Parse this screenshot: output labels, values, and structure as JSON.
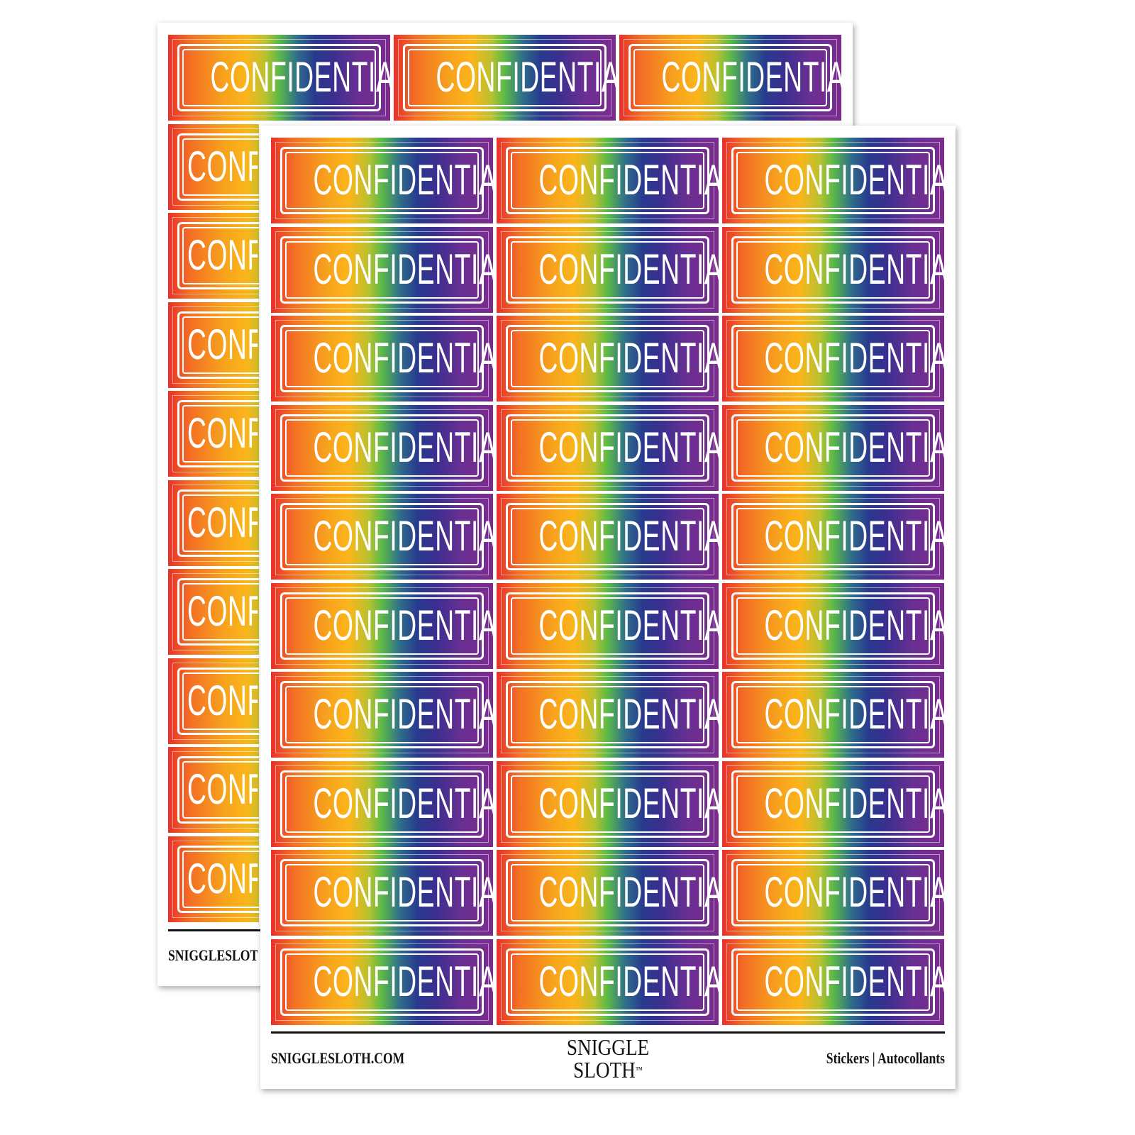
{
  "sticker_text": "CONFIDENTIAL",
  "grid": {
    "rows": 10,
    "columns": 3
  },
  "colors": {
    "gradient": [
      "#e8302a",
      "#f7a21d",
      "#fbb51a",
      "#5bb948",
      "#283a8e",
      "#6a2f92",
      "#7b2c8e"
    ],
    "frame": "#ffffff"
  },
  "footer": {
    "site": "SNIGGLESLOTH.COM",
    "back_site_visible": "SNIGGLESLOTH.C",
    "logo_line1": "SNIGGLE",
    "logo_line2": "SLOTH",
    "trademark": "™",
    "right_text": "Stickers  |  Autocollants"
  }
}
